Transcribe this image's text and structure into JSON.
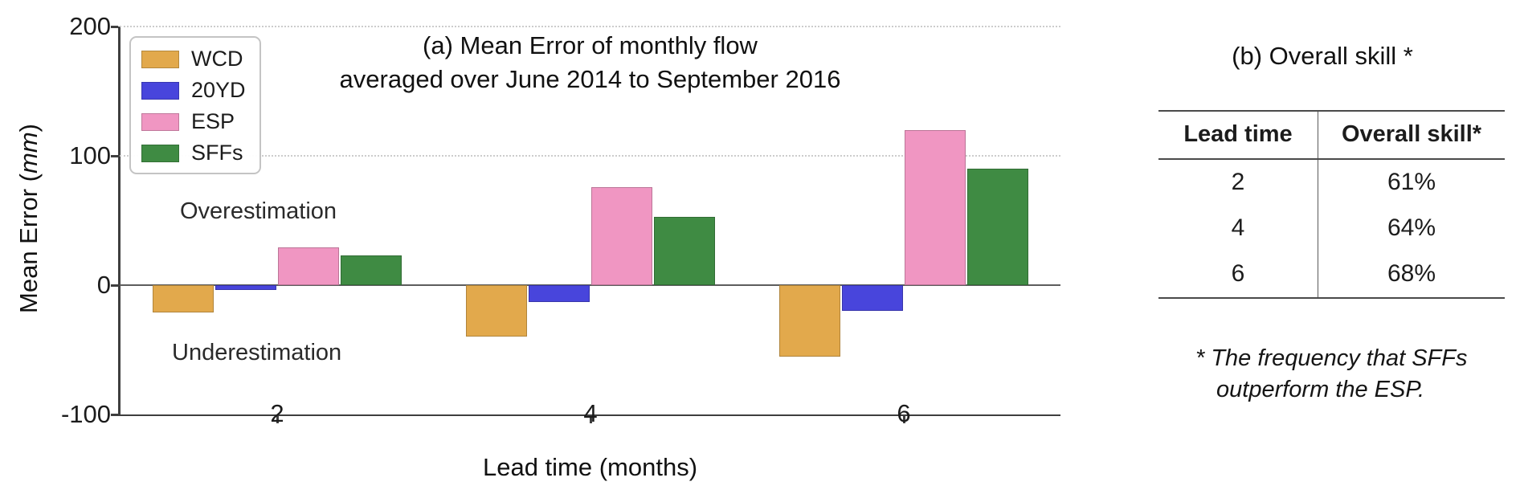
{
  "chart_data": {
    "type": "bar",
    "title_line1": "(a)  Mean Error of monthly flow",
    "title_line2": "averaged over June 2014 to September 2016",
    "xlabel": "Lead time (months)",
    "ylabel_prefix": "Mean Error (",
    "ylabel_italic": "mm",
    "ylabel_suffix": ")",
    "categories": [
      "2",
      "4",
      "6"
    ],
    "series": [
      {
        "name": "WCD",
        "color": "#E2A94C",
        "values": [
          -21,
          -40,
          -55
        ]
      },
      {
        "name": "20YD",
        "color": "#4845DC",
        "values": [
          -4,
          -13,
          -20
        ]
      },
      {
        "name": "ESP",
        "color": "#F096C2",
        "values": [
          29,
          76,
          120
        ]
      },
      {
        "name": "SFFs",
        "color": "#3F8B43",
        "values": [
          23,
          53,
          90
        ]
      }
    ],
    "ylim": [
      -100,
      200
    ],
    "yticks": [
      200,
      100,
      0,
      -100
    ],
    "grid_values": [
      200,
      100
    ],
    "legend_position": "upper-left",
    "grid": "dotted horizontal",
    "annotations": {
      "over": "Overestimation",
      "under": "Underestimation"
    }
  },
  "table_panel": {
    "title": "(b) Overall skill *",
    "columns": [
      "Lead time",
      "Overall skill*"
    ],
    "rows": [
      [
        "2",
        "61%"
      ],
      [
        "4",
        "64%"
      ],
      [
        "6",
        "68%"
      ]
    ],
    "footnote_line1": "* The frequency that SFFs",
    "footnote_line2": "outperform the ESP."
  }
}
